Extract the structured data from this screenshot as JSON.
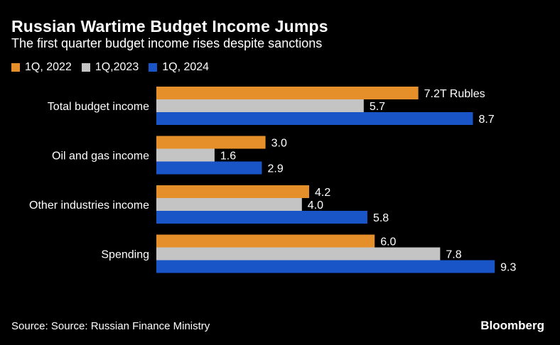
{
  "header": {
    "title": "Russian Wartime Budget Income Jumps",
    "subtitle": "The first quarter budget income rises despite sanctions"
  },
  "footer": {
    "source": "Source: Source: Russian Finance Ministry",
    "logo": "Bloomberg"
  },
  "colors": {
    "background": "#000000",
    "series_2022": "#e58f2a",
    "series_2023": "#c4c4c4",
    "series_2024": "#1a55c8",
    "text": "#ffffff"
  },
  "chart_data": {
    "type": "bar",
    "orientation": "horizontal",
    "title": "Russian Wartime Budget Income Jumps",
    "subtitle": "The first quarter budget income rises despite sanctions",
    "categories": [
      "Total budget income",
      "Oil and gas income",
      "Other industries income",
      "Spending"
    ],
    "series": [
      {
        "name": "1Q, 2022",
        "color": "#e58f2a",
        "values": [
          7.2,
          3.0,
          4.2,
          6.0
        ],
        "labels": [
          "7.2T Rubles",
          "3.0",
          "4.2",
          "6.0"
        ]
      },
      {
        "name": "1Q,2023",
        "color": "#c4c4c4",
        "values": [
          5.7,
          1.6,
          4.0,
          7.8
        ],
        "labels": [
          "5.7",
          "1.6",
          "4.0",
          "7.8"
        ]
      },
      {
        "name": "1Q, 2024",
        "color": "#1a55c8",
        "values": [
          8.7,
          2.9,
          5.8,
          9.3
        ],
        "labels": [
          "8.7",
          "2.9",
          "5.8",
          "9.3"
        ]
      }
    ],
    "xlabel": "",
    "ylabel": "",
    "unit": "T Rubles",
    "xlim": [
      0,
      10
    ],
    "grid": false,
    "legend_position": "top-left"
  }
}
